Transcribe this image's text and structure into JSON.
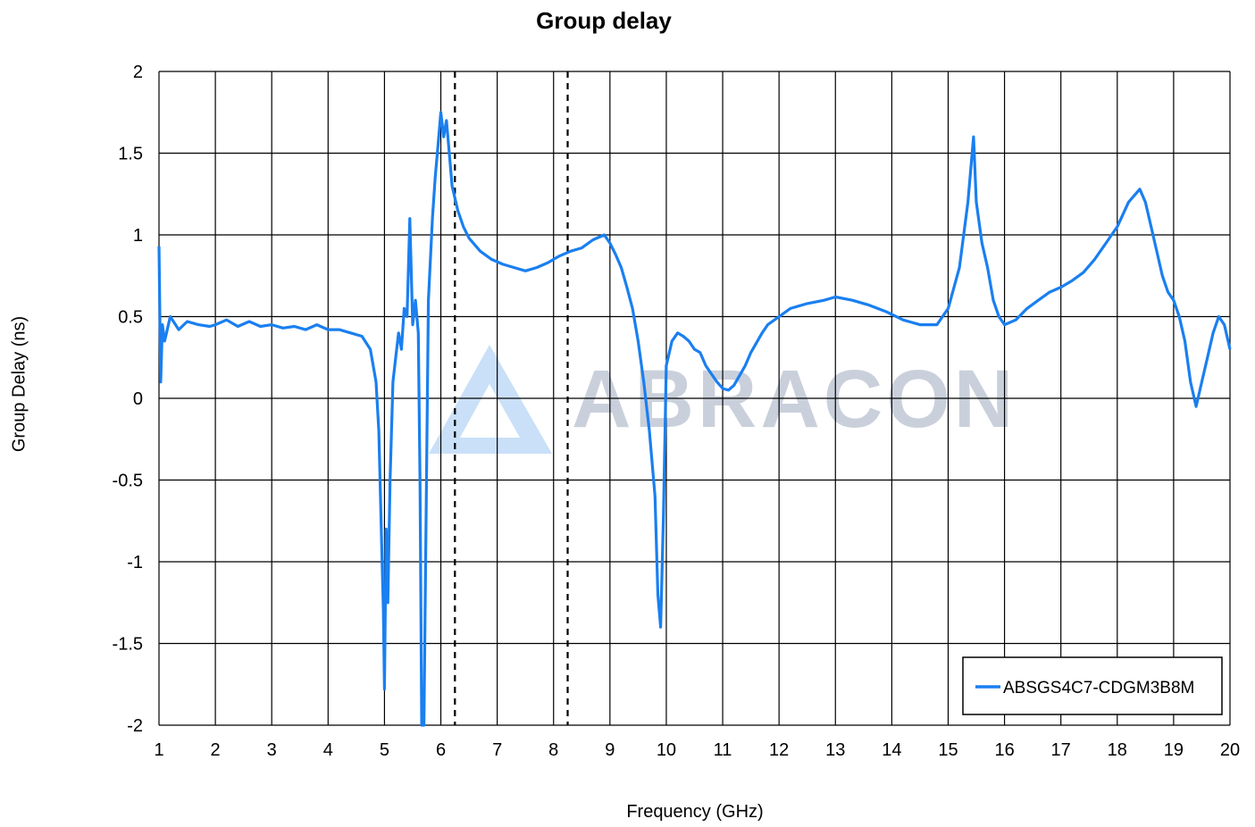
{
  "chart_data": {
    "type": "line",
    "title": "Group delay",
    "xlabel": "Frequency (GHz)",
    "ylabel": "Group Delay (ns)",
    "xlim": [
      1,
      20
    ],
    "ylim": [
      -2,
      2
    ],
    "x_ticks": [
      "1",
      "2",
      "3",
      "4",
      "5",
      "6",
      "7",
      "8",
      "9",
      "10",
      "11",
      "12",
      "13",
      "14",
      "15",
      "16",
      "17",
      "18",
      "19",
      "20"
    ],
    "y_ticks": [
      "2",
      "1.5",
      "1",
      "0.5",
      "0",
      "-0.5",
      "-1",
      "-1.5",
      "-2"
    ],
    "grid": true,
    "legend_position": "bottom-right",
    "watermark": "ABRACON",
    "dashed_markers_x": [
      6.25,
      8.25
    ],
    "colors": {
      "series": "#1a7ff0",
      "grid": "#000000",
      "watermark": "#aeb8c8"
    },
    "series": [
      {
        "name": "ABSGS4C7-CDGM3B8M",
        "points": [
          [
            1.0,
            0.93
          ],
          [
            1.03,
            0.1
          ],
          [
            1.06,
            0.45
          ],
          [
            1.1,
            0.35
          ],
          [
            1.2,
            0.5
          ],
          [
            1.35,
            0.42
          ],
          [
            1.5,
            0.47
          ],
          [
            1.7,
            0.45
          ],
          [
            1.9,
            0.44
          ],
          [
            2.0,
            0.45
          ],
          [
            2.2,
            0.48
          ],
          [
            2.4,
            0.44
          ],
          [
            2.6,
            0.47
          ],
          [
            2.8,
            0.44
          ],
          [
            3.0,
            0.45
          ],
          [
            3.2,
            0.43
          ],
          [
            3.4,
            0.44
          ],
          [
            3.6,
            0.42
          ],
          [
            3.8,
            0.45
          ],
          [
            4.0,
            0.42
          ],
          [
            4.2,
            0.42
          ],
          [
            4.4,
            0.4
          ],
          [
            4.6,
            0.38
          ],
          [
            4.75,
            0.3
          ],
          [
            4.85,
            0.1
          ],
          [
            4.9,
            -0.2
          ],
          [
            4.95,
            -0.9
          ],
          [
            4.98,
            -1.3
          ],
          [
            5.0,
            -1.78
          ],
          [
            5.03,
            -0.8
          ],
          [
            5.06,
            -1.25
          ],
          [
            5.1,
            -0.5
          ],
          [
            5.15,
            0.1
          ],
          [
            5.2,
            0.25
          ],
          [
            5.25,
            0.4
          ],
          [
            5.3,
            0.3
          ],
          [
            5.35,
            0.55
          ],
          [
            5.4,
            0.5
          ],
          [
            5.45,
            1.1
          ],
          [
            5.5,
            0.45
          ],
          [
            5.55,
            0.6
          ],
          [
            5.6,
            0.4
          ],
          [
            5.63,
            -0.5
          ],
          [
            5.66,
            -2.0
          ],
          [
            5.7,
            -2.0
          ],
          [
            5.73,
            -1.0
          ],
          [
            5.78,
            0.6
          ],
          [
            5.85,
            1.1
          ],
          [
            5.9,
            1.35
          ],
          [
            5.95,
            1.55
          ],
          [
            6.0,
            1.75
          ],
          [
            6.05,
            1.6
          ],
          [
            6.1,
            1.7
          ],
          [
            6.15,
            1.5
          ],
          [
            6.2,
            1.3
          ],
          [
            6.3,
            1.15
          ],
          [
            6.4,
            1.05
          ],
          [
            6.5,
            0.98
          ],
          [
            6.7,
            0.9
          ],
          [
            6.9,
            0.85
          ],
          [
            7.1,
            0.82
          ],
          [
            7.3,
            0.8
          ],
          [
            7.5,
            0.78
          ],
          [
            7.7,
            0.8
          ],
          [
            7.9,
            0.83
          ],
          [
            8.1,
            0.87
          ],
          [
            8.3,
            0.9
          ],
          [
            8.5,
            0.92
          ],
          [
            8.7,
            0.97
          ],
          [
            8.9,
            1.0
          ],
          [
            9.0,
            0.95
          ],
          [
            9.1,
            0.88
          ],
          [
            9.2,
            0.8
          ],
          [
            9.3,
            0.68
          ],
          [
            9.4,
            0.55
          ],
          [
            9.5,
            0.35
          ],
          [
            9.6,
            0.1
          ],
          [
            9.7,
            -0.2
          ],
          [
            9.8,
            -0.6
          ],
          [
            9.85,
            -1.2
          ],
          [
            9.9,
            -1.4
          ],
          [
            9.95,
            -0.7
          ],
          [
            10.0,
            0.2
          ],
          [
            10.1,
            0.35
          ],
          [
            10.2,
            0.4
          ],
          [
            10.3,
            0.38
          ],
          [
            10.4,
            0.35
          ],
          [
            10.5,
            0.3
          ],
          [
            10.6,
            0.28
          ],
          [
            10.7,
            0.2
          ],
          [
            10.8,
            0.15
          ],
          [
            10.9,
            0.1
          ],
          [
            11.0,
            0.06
          ],
          [
            11.1,
            0.05
          ],
          [
            11.2,
            0.08
          ],
          [
            11.3,
            0.14
          ],
          [
            11.4,
            0.2
          ],
          [
            11.5,
            0.28
          ],
          [
            11.6,
            0.34
          ],
          [
            11.7,
            0.4
          ],
          [
            11.8,
            0.45
          ],
          [
            12.0,
            0.5
          ],
          [
            12.2,
            0.55
          ],
          [
            12.5,
            0.58
          ],
          [
            12.8,
            0.6
          ],
          [
            13.0,
            0.62
          ],
          [
            13.3,
            0.6
          ],
          [
            13.6,
            0.57
          ],
          [
            13.9,
            0.53
          ],
          [
            14.2,
            0.48
          ],
          [
            14.5,
            0.45
          ],
          [
            14.8,
            0.45
          ],
          [
            15.0,
            0.55
          ],
          [
            15.2,
            0.8
          ],
          [
            15.35,
            1.2
          ],
          [
            15.45,
            1.6
          ],
          [
            15.5,
            1.2
          ],
          [
            15.6,
            0.95
          ],
          [
            15.7,
            0.8
          ],
          [
            15.8,
            0.6
          ],
          [
            15.9,
            0.5
          ],
          [
            16.0,
            0.45
          ],
          [
            16.2,
            0.48
          ],
          [
            16.4,
            0.55
          ],
          [
            16.6,
            0.6
          ],
          [
            16.8,
            0.65
          ],
          [
            17.0,
            0.68
          ],
          [
            17.2,
            0.72
          ],
          [
            17.4,
            0.77
          ],
          [
            17.6,
            0.85
          ],
          [
            17.8,
            0.95
          ],
          [
            18.0,
            1.05
          ],
          [
            18.2,
            1.2
          ],
          [
            18.4,
            1.28
          ],
          [
            18.5,
            1.2
          ],
          [
            18.6,
            1.05
          ],
          [
            18.7,
            0.9
          ],
          [
            18.8,
            0.75
          ],
          [
            18.9,
            0.65
          ],
          [
            19.0,
            0.6
          ],
          [
            19.1,
            0.5
          ],
          [
            19.2,
            0.35
          ],
          [
            19.3,
            0.1
          ],
          [
            19.4,
            -0.05
          ],
          [
            19.5,
            0.1
          ],
          [
            19.6,
            0.25
          ],
          [
            19.7,
            0.4
          ],
          [
            19.8,
            0.5
          ],
          [
            19.9,
            0.45
          ],
          [
            20.0,
            0.3
          ]
        ]
      }
    ]
  }
}
